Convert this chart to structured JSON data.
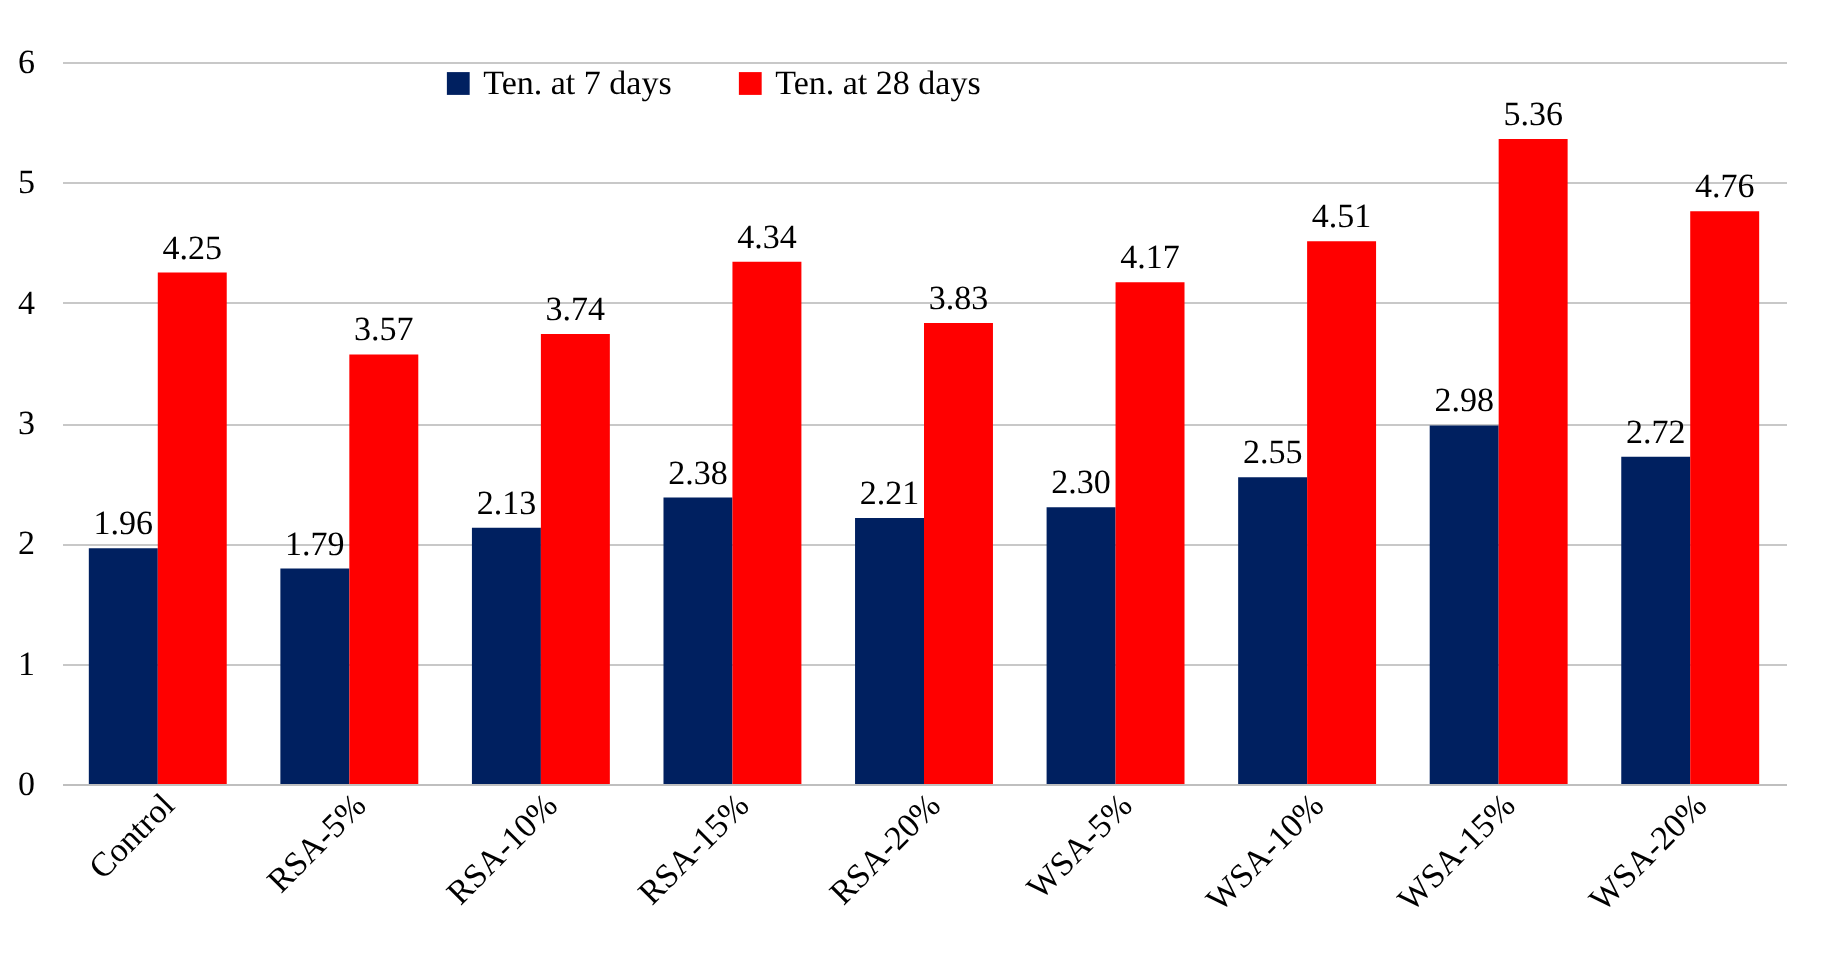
{
  "chart_data": {
    "type": "bar",
    "categories": [
      "Control",
      "RSA-5%",
      "RSA-10%",
      "RSA-15%",
      "RSA-20%",
      "WSA-5%",
      "WSA-10%",
      "WSA-15%",
      "WSA-20%"
    ],
    "series": [
      {
        "name": "Ten. at 7 days",
        "color": "#002060",
        "values": [
          1.96,
          1.79,
          2.13,
          2.38,
          2.21,
          2.3,
          2.55,
          2.98,
          2.72
        ],
        "value_labels": [
          "1.96",
          "1.79",
          "2.13",
          "2.38",
          "2.21",
          "2.30",
          "2.55",
          "2.98",
          "2.72"
        ]
      },
      {
        "name": "Ten. at 28 days",
        "color": "#ff0000",
        "values": [
          4.25,
          3.57,
          3.74,
          4.34,
          3.83,
          4.17,
          4.51,
          5.36,
          4.76
        ],
        "value_labels": [
          "4.25",
          "3.57",
          "3.74",
          "4.34",
          "3.83",
          "4.17",
          "4.51",
          "5.36",
          "4.76"
        ]
      }
    ],
    "ylim": [
      0,
      6
    ],
    "yticks": [
      0,
      1,
      2,
      3,
      4,
      5,
      6
    ],
    "grid": "y",
    "legend": "top"
  }
}
